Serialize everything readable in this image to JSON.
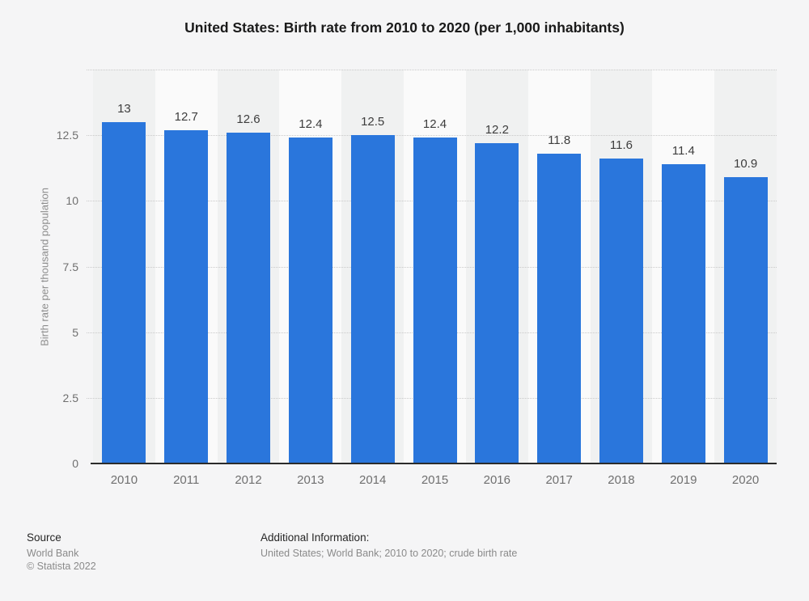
{
  "page": {
    "title": "United States: Birth rate from 2010 to 2020 (per 1,000 inhabitants)"
  },
  "chart_data": {
    "type": "bar",
    "title": "United States: Birth rate from 2010 to 2020 (per 1,000 inhabitants)",
    "categories": [
      "2010",
      "2011",
      "2012",
      "2013",
      "2014",
      "2015",
      "2016",
      "2017",
      "2018",
      "2019",
      "2020"
    ],
    "values": [
      13,
      12.7,
      12.6,
      12.4,
      12.5,
      12.4,
      12.2,
      11.8,
      11.6,
      11.4,
      10.9
    ],
    "value_labels": [
      "13",
      "12.7",
      "12.6",
      "12.4",
      "12.5",
      "12.4",
      "12.2",
      "11.8",
      "11.6",
      "11.4",
      "10.9"
    ],
    "xlabel": "",
    "ylabel": "Birth rate per thousand population",
    "ylim": [
      0,
      15
    ],
    "yticks": [
      0,
      2.5,
      5,
      7.5,
      10,
      12.5
    ],
    "ytick_labels": [
      "0",
      "2.5",
      "5",
      "7.5",
      "10",
      "12.5"
    ],
    "grid": "horizontal dotted, alternating vertical bands",
    "legend": "none",
    "bar_color": "#2a76dc",
    "band_color_dark": "#f0f1f1",
    "band_color_light": "#fafafa"
  },
  "footer": {
    "source_label": "Source",
    "source_line1": "World Bank",
    "source_line2": "© Statista 2022",
    "additional_label": "Additional Information:",
    "additional_text": "United States; World Bank; 2010 to 2020; crude birth rate"
  }
}
